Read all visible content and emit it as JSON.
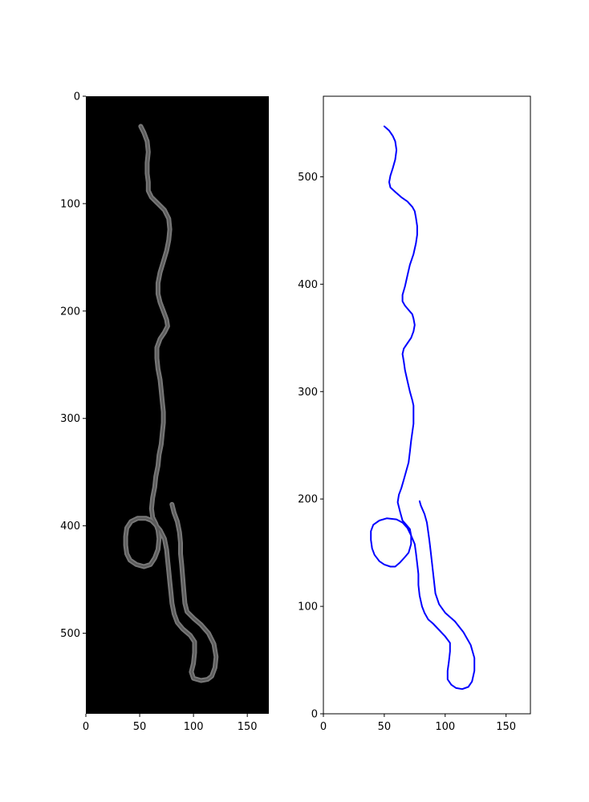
{
  "figure": {
    "background": "#ffffff"
  },
  "chart_data": [
    {
      "type": "image",
      "title": "",
      "xlabel": "",
      "ylabel": "",
      "xlim": [
        0,
        170
      ],
      "ylim": [
        575,
        0
      ],
      "y_inverted": true,
      "grid": false,
      "background": "#000000",
      "stroke_color": "#777777",
      "x_ticks": [
        0,
        50,
        100,
        150
      ],
      "y_ticks": [
        0,
        100,
        200,
        300,
        400,
        500
      ],
      "x_tick_labels": [
        "0",
        "50",
        "100",
        "150"
      ],
      "y_tick_labels": [
        "0",
        "100",
        "200",
        "300",
        "400",
        "500"
      ],
      "series": [
        {
          "points": [
            [
              51,
              28
            ],
            [
              54,
              34
            ],
            [
              57,
              42
            ],
            [
              58,
              52
            ],
            [
              57,
              62
            ],
            [
              57,
              72
            ],
            [
              58,
              80
            ],
            [
              58,
              88
            ],
            [
              61,
              94
            ],
            [
              67,
              100
            ],
            [
              73,
              106
            ],
            [
              77,
              114
            ],
            [
              78,
              124
            ],
            [
              77,
              134
            ],
            [
              75,
              144
            ],
            [
              72,
              154
            ],
            [
              69,
              164
            ],
            [
              67,
              174
            ],
            [
              67,
              184
            ],
            [
              69,
              192
            ],
            [
              72,
              200
            ],
            [
              75,
              208
            ],
            [
              76,
              214
            ],
            [
              73,
              220
            ],
            [
              69,
              226
            ],
            [
              66,
              234
            ],
            [
              66,
              244
            ],
            [
              67,
              254
            ],
            [
              69,
              264
            ],
            [
              70,
              274
            ],
            [
              71,
              284
            ],
            [
              72,
              294
            ],
            [
              72,
              304
            ],
            [
              71,
              314
            ],
            [
              70,
              324
            ],
            [
              68,
              334
            ],
            [
              67,
              344
            ],
            [
              65,
              354
            ],
            [
              64,
              364
            ],
            [
              62,
              374
            ],
            [
              61,
              384
            ],
            [
              62,
              392
            ],
            [
              65,
              398
            ],
            [
              67,
              404
            ],
            [
              68,
              412
            ],
            [
              67,
              422
            ],
            [
              64,
              430
            ],
            [
              60,
              436
            ],
            [
              54,
              438
            ],
            [
              47,
              436
            ],
            [
              41,
              432
            ],
            [
              38,
              426
            ],
            [
              37,
              418
            ],
            [
              37,
              410
            ],
            [
              38,
              402
            ],
            [
              42,
              396
            ],
            [
              48,
              393
            ],
            [
              56,
              393
            ],
            [
              61,
              395
            ],
            [
              64,
              398
            ],
            [
              69,
              404
            ],
            [
              73,
              412
            ],
            [
              75,
              422
            ],
            [
              76,
              432
            ],
            [
              77,
              442
            ],
            [
              78,
              452
            ],
            [
              79,
              462
            ],
            [
              80,
              472
            ],
            [
              82,
              482
            ],
            [
              85,
              490
            ],
            [
              90,
              496
            ],
            [
              97,
              502
            ],
            [
              101,
              508
            ],
            [
              101,
              518
            ],
            [
              100,
              528
            ],
            [
              98,
              536
            ],
            [
              100,
              542
            ],
            [
              107,
              544
            ],
            [
              113,
              543
            ],
            [
              117,
              540
            ],
            [
              120,
              532
            ],
            [
              121,
              522
            ],
            [
              119,
              510
            ],
            [
              114,
              500
            ],
            [
              107,
              492
            ],
            [
              100,
              486
            ],
            [
              94,
              480
            ],
            [
              92,
              472
            ],
            [
              91,
              460
            ],
            [
              90,
              448
            ],
            [
              89,
              436
            ],
            [
              88,
              426
            ],
            [
              88,
              416
            ],
            [
              87,
              406
            ],
            [
              85,
              396
            ],
            [
              82,
              388
            ],
            [
              80,
              380
            ]
          ]
        }
      ]
    },
    {
      "type": "line",
      "title": "",
      "xlabel": "",
      "ylabel": "",
      "xlim": [
        0,
        170
      ],
      "ylim": [
        0,
        575
      ],
      "grid": false,
      "x_ticks": [
        0,
        50,
        100,
        150
      ],
      "y_ticks": [
        0,
        100,
        200,
        300,
        400,
        500
      ],
      "x_tick_labels": [
        "0",
        "50",
        "100",
        "150"
      ],
      "y_tick_labels": [
        "0",
        "100",
        "200",
        "300",
        "400",
        "500"
      ],
      "line_color": "#0000ff",
      "series": [
        {
          "points": [
            [
              50,
              547
            ],
            [
              54,
              543
            ],
            [
              57,
              538
            ],
            [
              59,
              533
            ],
            [
              60,
              525
            ],
            [
              59,
              516
            ],
            [
              57,
              508
            ],
            [
              55,
              501
            ],
            [
              54,
              495
            ],
            [
              55,
              490
            ],
            [
              59,
              486
            ],
            [
              64,
              481
            ],
            [
              69,
              477
            ],
            [
              73,
              472
            ],
            [
              75,
              468
            ],
            [
              76,
              462
            ],
            [
              77,
              454
            ],
            [
              77,
              446
            ],
            [
              76,
              438
            ],
            [
              74,
              428
            ],
            [
              71,
              418
            ],
            [
              69,
              408
            ],
            [
              67,
              398
            ],
            [
              65,
              390
            ],
            [
              65,
              384
            ],
            [
              67,
              380
            ],
            [
              70,
              376
            ],
            [
              73,
              372
            ],
            [
              74,
              368
            ],
            [
              75,
              362
            ],
            [
              74,
              356
            ],
            [
              72,
              350
            ],
            [
              69,
              345
            ],
            [
              66,
              340
            ],
            [
              65,
              335
            ],
            [
              66,
              328
            ],
            [
              67,
              320
            ],
            [
              69,
              310
            ],
            [
              71,
              300
            ],
            [
              73,
              292
            ],
            [
              74,
              287
            ],
            [
              74,
              278
            ],
            [
              74,
              270
            ],
            [
              73,
              262
            ],
            [
              72,
              254
            ],
            [
              71,
              244
            ],
            [
              70,
              234
            ],
            [
              68,
              226
            ],
            [
              66,
              218
            ],
            [
              64,
              210
            ],
            [
              62,
              204
            ],
            [
              61,
              197
            ],
            [
              63,
              188
            ],
            [
              65,
              180
            ],
            [
              68,
              176
            ],
            [
              71,
              172
            ],
            [
              72,
              166
            ],
            [
              72,
              158
            ],
            [
              70,
              150
            ],
            [
              67,
              146
            ],
            [
              63,
              141
            ],
            [
              59,
              137
            ],
            [
              55,
              137
            ],
            [
              50,
              139
            ],
            [
              46,
              142
            ],
            [
              42,
              148
            ],
            [
              40,
              154
            ],
            [
              39,
              162
            ],
            [
              39,
              170
            ],
            [
              41,
              176
            ],
            [
              46,
              180
            ],
            [
              52,
              182
            ],
            [
              60,
              181
            ],
            [
              65,
              178
            ],
            [
              69,
              173
            ],
            [
              72,
              166
            ],
            [
              75,
              158
            ],
            [
              76,
              150
            ],
            [
              77,
              140
            ],
            [
              78,
              130
            ],
            [
              78,
              120
            ],
            [
              79,
              110
            ],
            [
              81,
              100
            ],
            [
              83,
              94
            ],
            [
              86,
              88
            ],
            [
              90,
              84
            ],
            [
              95,
              78
            ],
            [
              100,
              72
            ],
            [
              104,
              66
            ],
            [
              104,
              58
            ],
            [
              103,
              48
            ],
            [
              102,
              40
            ],
            [
              102,
              32
            ],
            [
              105,
              27
            ],
            [
              109,
              24
            ],
            [
              114,
              23
            ],
            [
              119,
              25
            ],
            [
              122,
              30
            ],
            [
              124,
              40
            ],
            [
              124,
              52
            ],
            [
              121,
              64
            ],
            [
              115,
              76
            ],
            [
              108,
              86
            ],
            [
              100,
              94
            ],
            [
              95,
              102
            ],
            [
              92,
              112
            ],
            [
              91,
              122
            ],
            [
              90,
              132
            ],
            [
              89,
              142
            ],
            [
              88,
              152
            ],
            [
              87,
              162
            ],
            [
              86,
              170
            ],
            [
              85,
              178
            ],
            [
              83,
              186
            ],
            [
              80,
              194
            ],
            [
              79,
              198
            ]
          ]
        }
      ]
    }
  ]
}
